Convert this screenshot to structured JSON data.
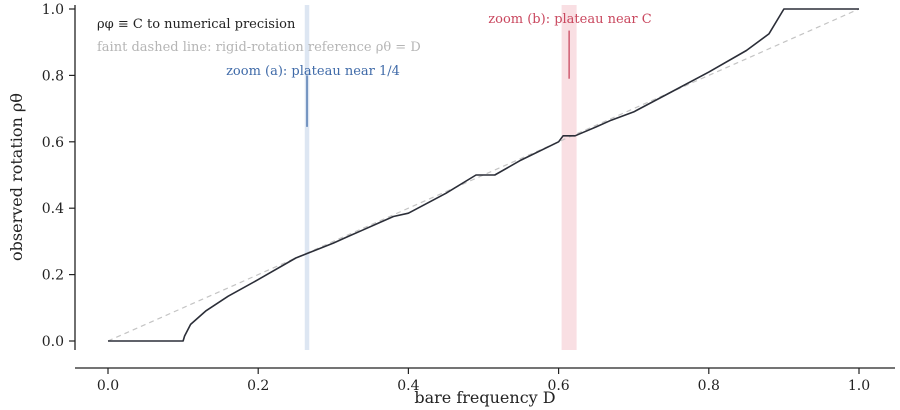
{
  "chart_data": {
    "type": "line",
    "xlabel": "bare frequency D",
    "ylabel": "observed rotation ρθ",
    "xlim": [
      -0.04,
      1.05
    ],
    "ylim": [
      -0.02,
      1.02
    ],
    "xticks": [
      "0.0",
      "0.2",
      "0.4",
      "0.6",
      "0.8",
      "1.0"
    ],
    "yticks": [
      "0.0",
      "0.2",
      "0.4",
      "0.6",
      "0.8",
      "1.0"
    ],
    "grid": false,
    "series": [
      {
        "style": "solid",
        "color": "#2b2e38",
        "x": [
          0.0,
          0.1,
          0.102,
          0.11,
          0.13,
          0.16,
          0.2,
          0.25,
          0.3,
          0.32,
          0.34,
          0.36,
          0.38,
          0.4,
          0.45,
          0.49,
          0.515,
          0.55,
          0.6,
          0.606,
          0.622,
          0.65,
          0.67,
          0.7,
          0.75,
          0.8,
          0.85,
          0.88,
          0.9,
          1.0
        ],
        "y": [
          0.0,
          0.0,
          0.015,
          0.05,
          0.09,
          0.135,
          0.185,
          0.25,
          0.295,
          0.315,
          0.335,
          0.355,
          0.375,
          0.385,
          0.445,
          0.5,
          0.5,
          0.545,
          0.6,
          0.618,
          0.618,
          0.645,
          0.665,
          0.69,
          0.75,
          0.81,
          0.875,
          0.925,
          1.0,
          1.0
        ]
      },
      {
        "style": "dashed",
        "color": "#c4c4c4",
        "x": [
          0.0,
          1.0
        ],
        "y": [
          0.0,
          1.0
        ]
      }
    ],
    "bands": [
      {
        "x": [
          0.262,
          0.268
        ],
        "color": "#dde6f2"
      },
      {
        "x": [
          0.604,
          0.624
        ],
        "color": "#f9dfe3"
      }
    ],
    "annotations": [
      {
        "text": "zoom (a): plateau near 1/4",
        "color": "#3f6aa8",
        "marker_x": 0.265,
        "marker_y": [
          0.645,
          0.8
        ]
      },
      {
        "text": "zoom (b): plateau near C",
        "color": "#c9475e",
        "marker_x": 0.614,
        "marker_y": [
          0.79,
          0.935
        ]
      }
    ],
    "notes": [
      {
        "text": "ρφ ≡ C to numerical precision",
        "color": "#222222"
      },
      {
        "text": "faint dashed line: rigid-rotation reference ρθ = D",
        "color": "#b5b5b5"
      }
    ]
  }
}
